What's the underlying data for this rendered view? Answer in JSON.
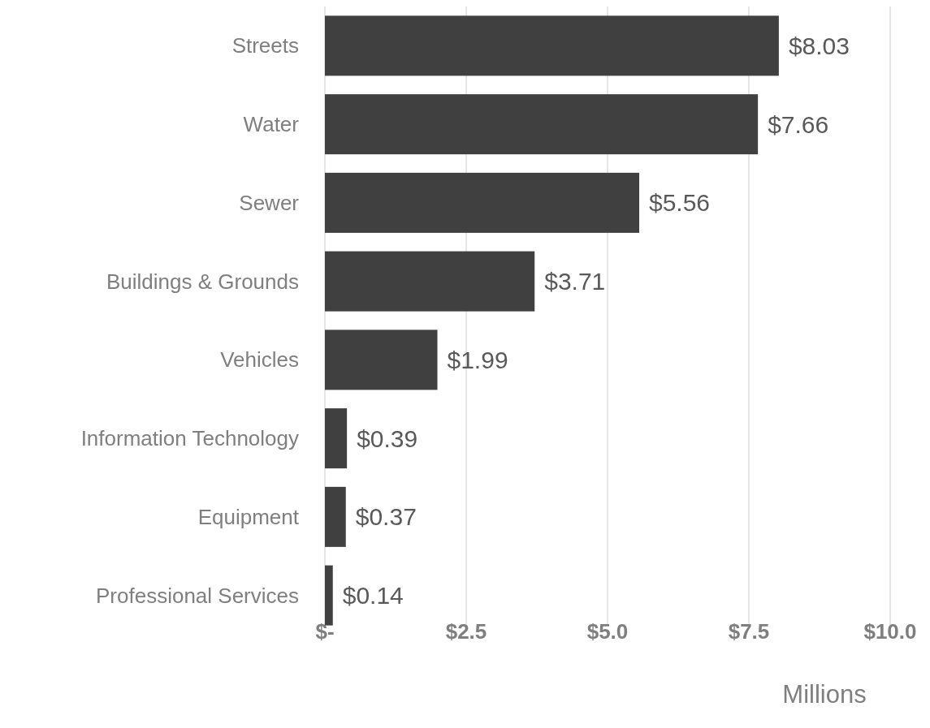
{
  "chart_data": {
    "type": "bar",
    "orientation": "horizontal",
    "xlabel": "Millions",
    "categories": [
      "Streets",
      "Water",
      "Sewer",
      "Buildings & Grounds",
      "Vehicles",
      "Information Technology",
      "Equipment",
      "Professional Services"
    ],
    "values": [
      8.03,
      7.66,
      5.56,
      3.71,
      1.99,
      0.39,
      0.37,
      0.14
    ],
    "value_labels": [
      "$8.03",
      "$7.66",
      "$5.56",
      "$3.71",
      "$1.99",
      "$0.39",
      "$0.37",
      "$0.14"
    ],
    "color": "#404040",
    "xlim": [
      0,
      10
    ],
    "xticks": [
      {
        "value": 0,
        "label": "$-"
      },
      {
        "value": 2.5,
        "label": "$2.5"
      },
      {
        "value": 5,
        "label": "$5.0"
      },
      {
        "value": 7.5,
        "label": "$7.5"
      },
      {
        "value": 10,
        "label": "$10.0"
      }
    ],
    "grid": "x"
  }
}
